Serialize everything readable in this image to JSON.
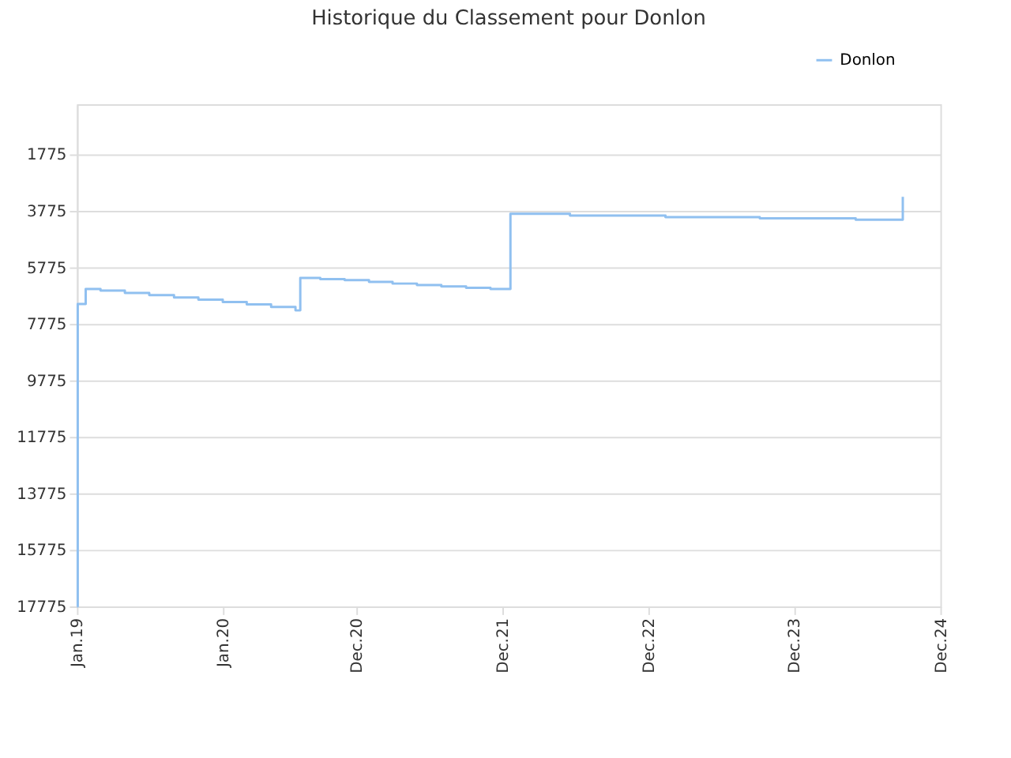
{
  "chart_data": {
    "type": "step",
    "title": "Historique du Classement pour Donlon",
    "x": [
      "2019-01-01",
      "2019-01-03",
      "2019-01-23",
      "2019-03-01",
      "2019-05-01",
      "2019-07-01",
      "2019-09-01",
      "2019-11-01",
      "2020-01-01",
      "2020-03-01",
      "2020-05-01",
      "2020-07-01",
      "2020-07-13",
      "2020-09-01",
      "2020-11-01",
      "2021-01-01",
      "2021-03-01",
      "2021-05-01",
      "2021-07-01",
      "2021-09-01",
      "2021-11-01",
      "2021-12-21",
      "2022-05-19",
      "2023-01-13",
      "2023-09-06",
      "2024-05-03",
      "2024-08-29"
    ],
    "series": [
      {
        "name": "Donlon",
        "color": "#90c0f0",
        "values": [
          17775,
          7070,
          6540,
          6600,
          6680,
          6760,
          6840,
          6920,
          7000,
          7090,
          7180,
          7300,
          6150,
          6190,
          6230,
          6290,
          6350,
          6400,
          6450,
          6500,
          6540,
          3880,
          3940,
          4000,
          4040,
          4090,
          3280
        ]
      }
    ],
    "xlim": [
      "2019-01-01",
      "2024-12-01"
    ],
    "xticks": [
      {
        "value": "2019-01-01",
        "label": "Jan.19"
      },
      {
        "value": "2020-01-01",
        "label": "Jan.20"
      },
      {
        "value": "2020-12-01",
        "label": "Dec.20"
      },
      {
        "value": "2021-12-01",
        "label": "Dec.21"
      },
      {
        "value": "2022-12-01",
        "label": "Dec.22"
      },
      {
        "value": "2023-12-01",
        "label": "Dec.23"
      },
      {
        "value": "2024-12-01",
        "label": "Dec.24"
      }
    ],
    "ylim": [
      17775,
      0
    ],
    "yticks": [
      1775,
      3775,
      5775,
      7775,
      9775,
      11775,
      13775,
      15775,
      17775
    ],
    "grid": "y",
    "legend": "top right",
    "line_style": "solid",
    "marker": "none"
  }
}
